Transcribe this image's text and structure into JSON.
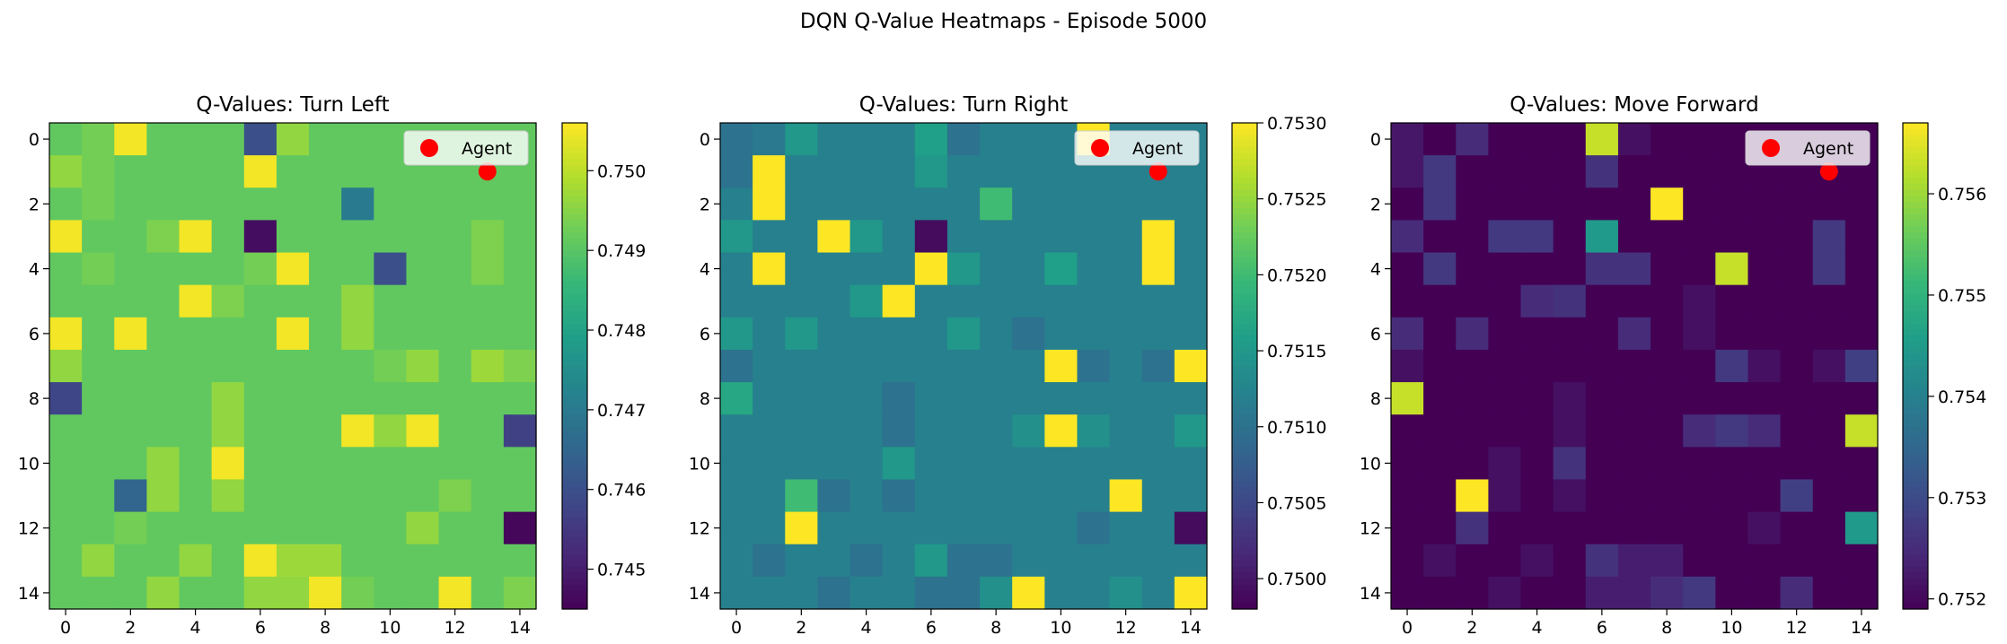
{
  "figure": {
    "suptitle": "DQN Q-Value Heatmaps - Episode 5000"
  },
  "colors": {
    "agent": "#ff0000",
    "colormap": "viridis"
  },
  "chart_data": [
    {
      "type": "heatmap",
      "title": "Q-Values: Turn Left",
      "x_ticks": [
        "0",
        "2",
        "4",
        "6",
        "8",
        "10",
        "12",
        "14"
      ],
      "y_ticks": [
        "0",
        "2",
        "4",
        "6",
        "8",
        "10",
        "12",
        "14"
      ],
      "colorbar": {
        "min": 0.7445,
        "max": 0.7506,
        "ticks": [
          {
            "v": 0.745,
            "label": "0.745"
          },
          {
            "v": 0.746,
            "label": "0.746"
          },
          {
            "v": 0.747,
            "label": "0.747"
          },
          {
            "v": 0.748,
            "label": "0.748"
          },
          {
            "v": 0.749,
            "label": "0.749"
          },
          {
            "v": 0.75,
            "label": "0.750"
          }
        ]
      },
      "legend": {
        "label": "Agent",
        "position": "top-right"
      },
      "agent": {
        "x": 13,
        "y": 1
      },
      "grid": [
        [
          0.7491,
          0.7493,
          0.7505,
          0.7491,
          0.7491,
          0.7491,
          0.746,
          0.7496,
          0.7491,
          0.7491,
          0.7491,
          0.7491,
          0.7491,
          0.7491,
          0.7491
        ],
        [
          0.7496,
          0.7493,
          0.7491,
          0.7491,
          0.7491,
          0.7491,
          0.7505,
          0.7491,
          0.7491,
          0.7491,
          0.7491,
          0.7491,
          0.7491,
          0.7491,
          0.7491
        ],
        [
          0.7491,
          0.7493,
          0.7491,
          0.7491,
          0.7491,
          0.7491,
          0.7491,
          0.7491,
          0.7491,
          0.747,
          0.7491,
          0.7491,
          0.7491,
          0.7491,
          0.7491
        ],
        [
          0.7505,
          0.7491,
          0.7491,
          0.7494,
          0.7505,
          0.7491,
          0.7447,
          0.7491,
          0.7491,
          0.7491,
          0.7491,
          0.7491,
          0.7491,
          0.7494,
          0.7491
        ],
        [
          0.7491,
          0.7493,
          0.7491,
          0.7491,
          0.7491,
          0.7491,
          0.7493,
          0.7505,
          0.7491,
          0.7491,
          0.746,
          0.7491,
          0.7491,
          0.7494,
          0.7491
        ],
        [
          0.7491,
          0.7491,
          0.7491,
          0.7491,
          0.7505,
          0.7494,
          0.7491,
          0.7491,
          0.7491,
          0.7496,
          0.7491,
          0.7491,
          0.7491,
          0.7491,
          0.7491
        ],
        [
          0.7505,
          0.7491,
          0.7505,
          0.7491,
          0.7491,
          0.7491,
          0.7491,
          0.7505,
          0.7491,
          0.7496,
          0.7491,
          0.7491,
          0.7491,
          0.7491,
          0.7491
        ],
        [
          0.7496,
          0.7491,
          0.7491,
          0.7491,
          0.7491,
          0.7491,
          0.7491,
          0.7491,
          0.7491,
          0.7491,
          0.7493,
          0.7496,
          0.7491,
          0.7497,
          0.7494
        ],
        [
          0.7458,
          0.7491,
          0.7491,
          0.7491,
          0.7491,
          0.7496,
          0.7491,
          0.7491,
          0.7491,
          0.7491,
          0.7491,
          0.7491,
          0.7491,
          0.7491,
          0.7491
        ],
        [
          0.7491,
          0.7491,
          0.7491,
          0.7491,
          0.7491,
          0.7496,
          0.7491,
          0.7491,
          0.7491,
          0.7505,
          0.7496,
          0.7505,
          0.7491,
          0.7491,
          0.7457
        ],
        [
          0.7491,
          0.7491,
          0.7491,
          0.7496,
          0.7491,
          0.7505,
          0.7491,
          0.7491,
          0.7491,
          0.7491,
          0.7491,
          0.7491,
          0.7491,
          0.7491,
          0.7491
        ],
        [
          0.7491,
          0.7491,
          0.7465,
          0.7496,
          0.7491,
          0.7496,
          0.7491,
          0.7491,
          0.7491,
          0.7491,
          0.7491,
          0.7491,
          0.7494,
          0.7491,
          0.7491
        ],
        [
          0.7491,
          0.7491,
          0.7493,
          0.7491,
          0.7491,
          0.7491,
          0.7491,
          0.7491,
          0.7491,
          0.7491,
          0.7491,
          0.7496,
          0.7491,
          0.7491,
          0.7446
        ],
        [
          0.7491,
          0.7496,
          0.7491,
          0.7491,
          0.7496,
          0.7491,
          0.7505,
          0.7497,
          0.7497,
          0.7491,
          0.7491,
          0.7491,
          0.7491,
          0.7491,
          0.7491
        ],
        [
          0.7491,
          0.7491,
          0.7491,
          0.7496,
          0.7491,
          0.7491,
          0.7496,
          0.7496,
          0.7505,
          0.7493,
          0.7491,
          0.7491,
          0.7505,
          0.7491,
          0.7494
        ]
      ]
    },
    {
      "type": "heatmap",
      "title": "Q-Values: Turn Right",
      "x_ticks": [
        "0",
        "2",
        "4",
        "6",
        "8",
        "10",
        "12",
        "14"
      ],
      "y_ticks": [
        "0",
        "2",
        "4",
        "6",
        "8",
        "10",
        "12",
        "14"
      ],
      "colorbar": {
        "min": 0.7498,
        "max": 0.753,
        "ticks": [
          {
            "v": 0.75,
            "label": "0.7500"
          },
          {
            "v": 0.7505,
            "label": "0.7505"
          },
          {
            "v": 0.751,
            "label": "0.7510"
          },
          {
            "v": 0.7515,
            "label": "0.7515"
          },
          {
            "v": 0.752,
            "label": "0.7520"
          },
          {
            "v": 0.7525,
            "label": "0.7525"
          },
          {
            "v": 0.753,
            "label": "0.7530"
          }
        ]
      },
      "legend": {
        "label": "Agent",
        "position": "top-right"
      },
      "agent": {
        "x": 13,
        "y": 1
      },
      "grid": [
        [
          0.751,
          0.7511,
          0.7515,
          0.7512,
          0.7512,
          0.7512,
          0.7516,
          0.751,
          0.7512,
          0.7512,
          0.7512,
          0.753,
          0.7512,
          0.7512,
          0.7512
        ],
        [
          0.751,
          0.753,
          0.7512,
          0.7512,
          0.7512,
          0.7512,
          0.7515,
          0.7512,
          0.7512,
          0.7512,
          0.7512,
          0.7512,
          0.7512,
          0.7512,
          0.7512
        ],
        [
          0.7512,
          0.753,
          0.7512,
          0.7512,
          0.7512,
          0.7512,
          0.7512,
          0.7512,
          0.752,
          0.7512,
          0.7512,
          0.7512,
          0.7512,
          0.7512,
          0.7512
        ],
        [
          0.7515,
          0.7512,
          0.7512,
          0.753,
          0.7515,
          0.7512,
          0.7499,
          0.7512,
          0.7512,
          0.7512,
          0.7512,
          0.7512,
          0.7512,
          0.753,
          0.7512
        ],
        [
          0.7512,
          0.753,
          0.7512,
          0.7512,
          0.7512,
          0.7512,
          0.753,
          0.7515,
          0.7512,
          0.7512,
          0.7516,
          0.7512,
          0.7512,
          0.753,
          0.7512
        ],
        [
          0.7512,
          0.7512,
          0.7512,
          0.7512,
          0.7515,
          0.753,
          0.7512,
          0.7512,
          0.7512,
          0.7512,
          0.7512,
          0.7512,
          0.7512,
          0.7512,
          0.7512
        ],
        [
          0.7515,
          0.7512,
          0.7515,
          0.7512,
          0.7512,
          0.7512,
          0.7512,
          0.7515,
          0.7512,
          0.751,
          0.7512,
          0.7512,
          0.7512,
          0.7512,
          0.7512
        ],
        [
          0.751,
          0.7512,
          0.7512,
          0.7512,
          0.7512,
          0.7512,
          0.7512,
          0.7512,
          0.7512,
          0.7512,
          0.753,
          0.751,
          0.7512,
          0.751,
          0.753
        ],
        [
          0.7517,
          0.7512,
          0.7512,
          0.7512,
          0.7512,
          0.751,
          0.7512,
          0.7512,
          0.7512,
          0.7512,
          0.7512,
          0.7512,
          0.7512,
          0.7512,
          0.7512
        ],
        [
          0.7512,
          0.7512,
          0.7512,
          0.7512,
          0.7512,
          0.751,
          0.7512,
          0.7512,
          0.7512,
          0.7514,
          0.753,
          0.7514,
          0.7512,
          0.7512,
          0.7515
        ],
        [
          0.7512,
          0.7512,
          0.7512,
          0.7512,
          0.7512,
          0.7515,
          0.7512,
          0.7512,
          0.7512,
          0.7512,
          0.7512,
          0.7512,
          0.7512,
          0.7512,
          0.7512
        ],
        [
          0.7512,
          0.7512,
          0.752,
          0.751,
          0.7512,
          0.751,
          0.7512,
          0.7512,
          0.7512,
          0.7512,
          0.7512,
          0.7512,
          0.753,
          0.7512,
          0.7512
        ],
        [
          0.7512,
          0.7512,
          0.753,
          0.7512,
          0.7512,
          0.7512,
          0.7512,
          0.7512,
          0.7512,
          0.7512,
          0.7512,
          0.751,
          0.7512,
          0.7512,
          0.7499
        ],
        [
          0.7512,
          0.751,
          0.7512,
          0.7512,
          0.751,
          0.7512,
          0.7515,
          0.751,
          0.751,
          0.7512,
          0.7512,
          0.7512,
          0.7512,
          0.7512,
          0.7512
        ],
        [
          0.7512,
          0.7512,
          0.7512,
          0.751,
          0.7512,
          0.7512,
          0.751,
          0.751,
          0.7514,
          0.753,
          0.7512,
          0.7512,
          0.7514,
          0.7512,
          0.753
        ]
      ]
    },
    {
      "type": "heatmap",
      "title": "Q-Values: Move Forward",
      "x_ticks": [
        "0",
        "2",
        "4",
        "6",
        "8",
        "10",
        "12",
        "14"
      ],
      "y_ticks": [
        "0",
        "2",
        "4",
        "6",
        "8",
        "10",
        "12",
        "14"
      ],
      "colorbar": {
        "min": 0.7519,
        "max": 0.7567,
        "ticks": [
          {
            "v": 0.752,
            "label": "0.752"
          },
          {
            "v": 0.753,
            "label": "0.753"
          },
          {
            "v": 0.754,
            "label": "0.754"
          },
          {
            "v": 0.755,
            "label": "0.755"
          },
          {
            "v": 0.756,
            "label": "0.756"
          }
        ]
      },
      "legend": {
        "label": "Agent",
        "position": "top-right"
      },
      "agent": {
        "x": 13,
        "y": 1
      },
      "grid": [
        [
          0.7522,
          0.7519,
          0.7525,
          0.7519,
          0.7519,
          0.7519,
          0.7563,
          0.7521,
          0.7519,
          0.7519,
          0.7519,
          0.7519,
          0.7519,
          0.7519,
          0.7519
        ],
        [
          0.7522,
          0.7527,
          0.7519,
          0.7519,
          0.7519,
          0.7519,
          0.7526,
          0.7519,
          0.7519,
          0.7519,
          0.7519,
          0.7519,
          0.7519,
          0.7519,
          0.7519
        ],
        [
          0.7519,
          0.7527,
          0.7519,
          0.7519,
          0.7519,
          0.7519,
          0.7519,
          0.7519,
          0.7567,
          0.7519,
          0.7519,
          0.7519,
          0.7519,
          0.7519,
          0.7519
        ],
        [
          0.7525,
          0.7519,
          0.7519,
          0.7527,
          0.7527,
          0.7519,
          0.7545,
          0.7519,
          0.7519,
          0.7519,
          0.7519,
          0.7519,
          0.7519,
          0.7527,
          0.7519
        ],
        [
          0.7519,
          0.7527,
          0.7519,
          0.7519,
          0.7519,
          0.7519,
          0.7526,
          0.7526,
          0.7519,
          0.7519,
          0.7563,
          0.7519,
          0.7519,
          0.7527,
          0.7519
        ],
        [
          0.7519,
          0.7519,
          0.7519,
          0.7519,
          0.7525,
          0.7526,
          0.7519,
          0.7519,
          0.7519,
          0.7521,
          0.7519,
          0.7519,
          0.7519,
          0.7519,
          0.7519
        ],
        [
          0.7525,
          0.7519,
          0.7525,
          0.7519,
          0.7519,
          0.7519,
          0.7519,
          0.7525,
          0.7519,
          0.7521,
          0.7519,
          0.7519,
          0.7519,
          0.7519,
          0.7519
        ],
        [
          0.7521,
          0.7519,
          0.7519,
          0.7519,
          0.7519,
          0.7519,
          0.7519,
          0.7519,
          0.7519,
          0.7519,
          0.7527,
          0.7521,
          0.7519,
          0.7521,
          0.7528
        ],
        [
          0.7563,
          0.7519,
          0.7519,
          0.7519,
          0.7519,
          0.7521,
          0.7519,
          0.7519,
          0.7519,
          0.7519,
          0.7519,
          0.7519,
          0.7519,
          0.7519,
          0.7519
        ],
        [
          0.7519,
          0.7519,
          0.7519,
          0.7519,
          0.7519,
          0.7521,
          0.7519,
          0.7519,
          0.7519,
          0.7525,
          0.7527,
          0.7525,
          0.7519,
          0.7519,
          0.7563
        ],
        [
          0.7519,
          0.7519,
          0.7519,
          0.7521,
          0.7519,
          0.7526,
          0.7519,
          0.7519,
          0.7519,
          0.7519,
          0.7519,
          0.7519,
          0.7519,
          0.7519,
          0.7519
        ],
        [
          0.7519,
          0.7519,
          0.7567,
          0.7521,
          0.7519,
          0.7521,
          0.7519,
          0.7519,
          0.7519,
          0.7519,
          0.7519,
          0.7519,
          0.7528,
          0.7519,
          0.7519
        ],
        [
          0.7519,
          0.7519,
          0.7526,
          0.7519,
          0.7519,
          0.7519,
          0.7519,
          0.7519,
          0.7519,
          0.7519,
          0.7519,
          0.7521,
          0.7519,
          0.7519,
          0.7545
        ],
        [
          0.7519,
          0.7521,
          0.7519,
          0.7519,
          0.7521,
          0.7519,
          0.7526,
          0.7523,
          0.7523,
          0.7519,
          0.7519,
          0.7519,
          0.7519,
          0.7519,
          0.7519
        ],
        [
          0.7519,
          0.7519,
          0.7519,
          0.7521,
          0.7519,
          0.7519,
          0.7523,
          0.7523,
          0.7525,
          0.7527,
          0.7519,
          0.7519,
          0.7525,
          0.7519,
          0.7519
        ]
      ]
    }
  ]
}
